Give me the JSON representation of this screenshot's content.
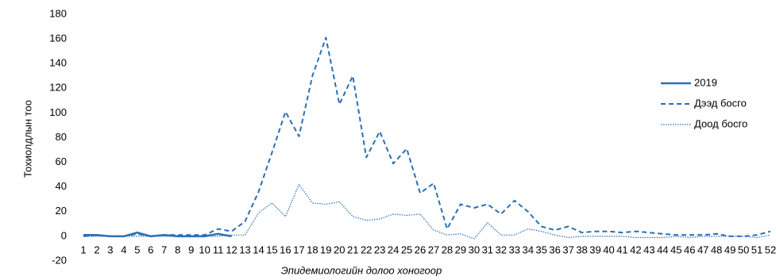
{
  "chart_data": {
    "type": "line",
    "x_label": "Эпидемиологийн долоо хоногоор",
    "y_label": "Тохиолдлын тоо",
    "categories": [
      "1",
      "2",
      "3",
      "4",
      "5",
      "6",
      "7",
      "8",
      "9",
      "10",
      "11",
      "12",
      "13",
      "14",
      "15",
      "16",
      "17",
      "18",
      "19",
      "20",
      "21",
      "22",
      "23",
      "24",
      "25",
      "26",
      "27",
      "28",
      "29",
      "30",
      "31",
      "32",
      "33",
      "34",
      "35",
      "36",
      "37",
      "38",
      "39",
      "40",
      "41",
      "42",
      "43",
      "44",
      "45",
      "46",
      "47",
      "48",
      "49",
      "50",
      "51",
      "52"
    ],
    "series": [
      {
        "name": "2019",
        "color": "#2a6fb5",
        "dash": "solid",
        "values": [
          1,
          1,
          0,
          0,
          3,
          0,
          1,
          0,
          0,
          0,
          2,
          0,
          null,
          null,
          null,
          null,
          null,
          null,
          null,
          null,
          null,
          null,
          null,
          null,
          null,
          null,
          null,
          null,
          null,
          null,
          null,
          null,
          null,
          null,
          null,
          null,
          null,
          null,
          null,
          null,
          null,
          null,
          null,
          null,
          null,
          null,
          null,
          null,
          null,
          null,
          null,
          null
        ]
      },
      {
        "name": "Дээд босго",
        "color": "#2a6fb5",
        "dash": "dashed",
        "values": [
          0,
          1,
          0,
          0,
          2,
          0,
          1,
          1,
          1,
          1,
          6,
          4,
          12,
          36,
          68,
          101,
          81,
          130,
          161,
          107,
          130,
          64,
          85,
          59,
          71,
          35,
          43,
          6,
          26,
          23,
          26,
          18,
          29,
          20,
          8,
          5,
          8,
          3,
          4,
          4,
          3,
          4,
          3,
          2,
          1,
          1,
          1,
          2,
          0,
          0,
          1,
          4
        ]
      },
      {
        "name": "Доод босго",
        "color": "#2a6fb5",
        "dash": "dotted",
        "values": [
          0,
          0,
          0,
          0,
          0,
          0,
          0,
          0,
          0,
          0,
          0,
          1,
          1,
          19,
          27,
          16,
          42,
          27,
          26,
          28,
          16,
          13,
          14,
          18,
          17,
          18,
          5,
          1,
          2,
          -2,
          11,
          1,
          1,
          6,
          4,
          1,
          -1,
          0,
          0,
          0,
          0,
          -1,
          -1,
          -1,
          0,
          -1,
          0,
          0,
          0,
          0,
          -1,
          1
        ]
      }
    ],
    "ylim": [
      -20,
      180
    ],
    "yticks": [
      -20,
      0,
      20,
      40,
      60,
      80,
      100,
      120,
      140,
      160,
      180
    ],
    "grid": false,
    "legend": "right"
  }
}
